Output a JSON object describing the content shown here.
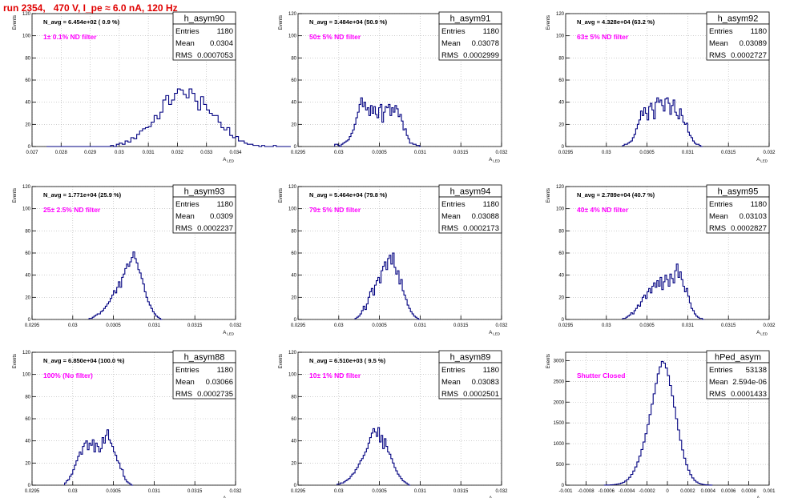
{
  "page_title": "run 2354,   470 V, I_pe ≈ 6.0 nA, 120 Hz",
  "colors": {
    "hist": "#000080",
    "magenta": "#ff00ff",
    "title_red": "#e00000",
    "grid": "#b0b0b0"
  },
  "chart_data": [
    {
      "type": "histogram",
      "name": "h_asym90",
      "stats": {
        "Entries": "1180",
        "Mean": "0.0304",
        "RMS": "0.0007053"
      },
      "navg_label": "N_avg = 6.454e+02 ( 0.9 %)",
      "filter_label": "1± 0.1% ND filter",
      "xlabel": "A_LED",
      "ylabel": "Events",
      "xlim": [
        0.027,
        0.034
      ],
      "ylim": [
        0,
        120
      ],
      "xticks": [
        "0.027",
        "0.028",
        "0.029",
        "0.03",
        "0.031",
        "0.032",
        "0.033",
        "0.034"
      ],
      "yticks": [
        "0",
        "20",
        "40",
        "60",
        "80",
        "100",
        "120"
      ],
      "grid": true,
      "bins": {
        "start": 0.0275,
        "width": 0.0001,
        "counts": [
          0,
          0,
          0,
          0,
          0,
          0,
          0,
          0,
          0,
          0,
          0,
          0,
          0,
          0,
          0,
          0,
          0,
          0,
          0,
          0,
          0,
          0,
          1,
          0,
          2,
          3,
          2,
          5,
          4,
          8,
          7,
          11,
          14,
          16,
          17,
          18,
          22,
          28,
          25,
          31,
          42,
          46,
          38,
          42,
          48,
          52,
          51,
          47,
          44,
          52,
          48,
          41,
          33,
          45,
          38,
          33,
          30,
          28,
          28,
          22,
          17,
          15,
          17,
          10,
          8,
          9,
          5,
          5,
          3,
          2,
          2,
          1,
          1,
          0,
          1,
          0,
          0,
          0,
          1,
          0,
          0,
          0,
          0,
          0
        ]
      }
    },
    {
      "type": "histogram",
      "name": "h_asym91",
      "stats": {
        "Entries": "1180",
        "Mean": "0.03078",
        "RMS": "0.0002999"
      },
      "navg_label": "N_avg = 3.484e+04 (50.9 %)",
      "filter_label": "50± 5% ND filter",
      "xlabel": "A_LED",
      "ylabel": "Events",
      "xlim": [
        0.0295,
        0.032
      ],
      "ylim": [
        0,
        120
      ],
      "xticks": [
        "0.0295",
        "0.03",
        "0.0305",
        "0.031",
        "0.0315",
        "0.032"
      ],
      "yticks": [
        "0",
        "20",
        "40",
        "60",
        "80",
        "100",
        "120"
      ],
      "grid": true,
      "bins": {
        "start": 0.02995,
        "width": 2e-05,
        "counts": [
          2,
          2,
          1,
          0,
          2,
          3,
          4,
          5,
          6,
          9,
          12,
          15,
          20,
          26,
          31,
          38,
          44,
          36,
          40,
          33,
          35,
          28,
          37,
          30,
          36,
          29,
          26,
          35,
          38,
          22,
          31,
          36,
          35,
          38,
          28,
          35,
          31,
          37,
          34,
          27,
          29,
          23,
          15,
          16,
          10,
          7,
          3,
          3,
          2,
          2,
          1,
          1,
          0
        ]
      }
    },
    {
      "type": "histogram",
      "name": "h_asym92",
      "stats": {
        "Entries": "1180",
        "Mean": "0.03089",
        "RMS": "0.0002727"
      },
      "navg_label": "N_avg = 4.328e+04 (63.2 %)",
      "filter_label": "63± 5% ND filter",
      "xlabel": "A_LED",
      "ylabel": "Events",
      "xlim": [
        0.0295,
        0.032
      ],
      "ylim": [
        0,
        120
      ],
      "xticks": [
        "0.0295",
        "0.03",
        "0.0305",
        "0.031",
        "0.0315",
        "0.032"
      ],
      "yticks": [
        "0",
        "20",
        "40",
        "60",
        "80",
        "100",
        "120"
      ],
      "grid": true,
      "bins": {
        "start": 0.0302,
        "width": 2e-05,
        "counts": [
          1,
          2,
          2,
          3,
          4,
          5,
          8,
          11,
          16,
          20,
          24,
          32,
          28,
          35,
          30,
          24,
          36,
          39,
          33,
          25,
          40,
          44,
          40,
          42,
          37,
          32,
          43,
          44,
          39,
          29,
          37,
          42,
          31,
          28,
          25,
          34,
          28,
          22,
          20,
          21,
          13,
          10,
          8,
          5,
          3,
          2,
          2,
          1,
          0
        ]
      }
    },
    {
      "type": "histogram",
      "name": "h_asym93",
      "stats": {
        "Entries": "1180",
        "Mean": "0.0309",
        "RMS": "0.0002237"
      },
      "navg_label": "N_avg = 1.771e+04 (25.9 %)",
      "filter_label": "25± 2.5% ND filter",
      "xlabel": "A_LED",
      "ylabel": "Events",
      "xlim": [
        0.0295,
        0.032
      ],
      "ylim": [
        0,
        120
      ],
      "xticks": [
        "0.0295",
        "0.03",
        "0.0305",
        "0.031",
        "0.0315",
        "0.032"
      ],
      "yticks": [
        "0",
        "20",
        "40",
        "60",
        "80",
        "100",
        "120"
      ],
      "grid": true,
      "bins": {
        "start": 0.0302,
        "width": 2e-05,
        "counts": [
          1,
          1,
          2,
          3,
          4,
          5,
          5,
          7,
          8,
          10,
          12,
          14,
          16,
          19,
          22,
          26,
          24,
          29,
          34,
          29,
          38,
          41,
          46,
          50,
          48,
          52,
          56,
          61,
          55,
          51,
          45,
          42,
          37,
          32,
          25,
          20,
          16,
          13,
          10,
          7,
          5,
          3,
          2,
          1,
          0
        ]
      }
    },
    {
      "type": "histogram",
      "name": "h_asym94",
      "stats": {
        "Entries": "1180",
        "Mean": "0.03088",
        "RMS": "0.0002173"
      },
      "navg_label": "N_avg = 5.464e+04 (79.8 %)",
      "filter_label": "79± 5% ND filter",
      "xlabel": "A_LED",
      "ylabel": "Events",
      "xlim": [
        0.0295,
        0.032
      ],
      "ylim": [
        0,
        120
      ],
      "xticks": [
        "0.0295",
        "0.03",
        "0.0305",
        "0.031",
        "0.0315",
        "0.032"
      ],
      "yticks": [
        "0",
        "20",
        "40",
        "60",
        "80",
        "100",
        "120"
      ],
      "grid": true,
      "bins": {
        "start": 0.0302,
        "width": 2e-05,
        "counts": [
          1,
          2,
          3,
          5,
          8,
          12,
          9,
          14,
          20,
          25,
          28,
          22,
          31,
          35,
          38,
          33,
          44,
          48,
          52,
          45,
          55,
          58,
          50,
          60,
          47,
          41,
          44,
          32,
          36,
          26,
          22,
          18,
          13,
          10,
          7,
          5,
          3,
          2,
          1,
          0
        ]
      }
    },
    {
      "type": "histogram",
      "name": "h_asym95",
      "stats": {
        "Entries": "1180",
        "Mean": "0.03103",
        "RMS": "0.0002827"
      },
      "navg_label": "N_avg = 2.789e+04 (40.7 %)",
      "filter_label": "40± 4% ND filter",
      "xlabel": "A_LED",
      "ylabel": "Events",
      "xlim": [
        0.0295,
        0.032
      ],
      "ylim": [
        0,
        120
      ],
      "xticks": [
        "0.0295",
        "0.03",
        "0.0305",
        "0.031",
        "0.0315",
        "0.032"
      ],
      "yticks": [
        "0",
        "20",
        "40",
        "60",
        "80",
        "100",
        "120"
      ],
      "grid": true,
      "bins": {
        "start": 0.0302,
        "width": 2e-05,
        "counts": [
          1,
          1,
          2,
          3,
          4,
          6,
          5,
          8,
          10,
          13,
          12,
          16,
          20,
          22,
          19,
          25,
          28,
          24,
          30,
          33,
          29,
          35,
          30,
          38,
          27,
          34,
          40,
          36,
          30,
          41,
          37,
          33,
          44,
          50,
          38,
          43,
          36,
          30,
          25,
          28,
          21,
          15,
          10,
          8,
          5,
          3,
          2,
          1,
          1,
          0
        ]
      }
    },
    {
      "type": "histogram",
      "name": "h_asym88",
      "stats": {
        "Entries": "1180",
        "Mean": "0.03066",
        "RMS": "0.0002735"
      },
      "navg_label": "N_avg = 6.850e+04 (100.0 %)",
      "filter_label": "100% (No filter)",
      "xlabel": "A_LED",
      "ylabel": "Events",
      "xlim": [
        0.0295,
        0.032
      ],
      "ylim": [
        0,
        120
      ],
      "xticks": [
        "0.0295",
        "0.03",
        "0.0305",
        "0.031",
        "0.0315",
        "0.032"
      ],
      "yticks": [
        "0",
        "20",
        "40",
        "60",
        "80",
        "100",
        "120"
      ],
      "grid": true,
      "bins": {
        "start": 0.0299,
        "width": 2e-05,
        "counts": [
          2,
          4,
          5,
          8,
          10,
          14,
          18,
          22,
          26,
          30,
          28,
          35,
          38,
          40,
          32,
          38,
          36,
          41,
          30,
          38,
          35,
          30,
          33,
          43,
          38,
          45,
          50,
          41,
          38,
          35,
          30,
          27,
          22,
          20,
          15,
          14,
          8,
          5,
          3,
          2,
          1,
          0
        ]
      }
    },
    {
      "type": "histogram",
      "name": "h_asym89",
      "stats": {
        "Entries": "1180",
        "Mean": "0.03083",
        "RMS": "0.0002501"
      },
      "navg_label": "N_avg = 6.510e+03 ( 9.5 %)",
      "filter_label": "10± 1% ND filter",
      "xlabel": "A_LED",
      "ylabel": "Events",
      "xlim": [
        0.0295,
        0.032
      ],
      "ylim": [
        0,
        120
      ],
      "xticks": [
        "0.0295",
        "0.03",
        "0.0305",
        "0.031",
        "0.0315",
        "0.032"
      ],
      "yticks": [
        "0",
        "20",
        "40",
        "60",
        "80",
        "100",
        "120"
      ],
      "grid": true,
      "bins": {
        "start": 0.02998,
        "width": 2e-05,
        "counts": [
          1,
          1,
          2,
          2,
          3,
          4,
          5,
          6,
          8,
          10,
          11,
          14,
          16,
          19,
          22,
          24,
          27,
          30,
          33,
          38,
          43,
          47,
          51,
          48,
          44,
          52,
          39,
          45,
          33,
          42,
          35,
          30,
          28,
          24,
          20,
          16,
          13,
          10,
          8,
          6,
          4,
          3,
          2,
          1,
          0
        ]
      }
    },
    {
      "type": "histogram",
      "name": "hPed_asym",
      "stats": {
        "Entries": "53138",
        "Mean": "2.594e-06",
        "RMS": "0.0001433"
      },
      "filter_label": "Shutter Closed",
      "xlabel": "A_LED",
      "ylabel": "Events",
      "xlim": [
        -0.001,
        0.001
      ],
      "ylim": [
        0,
        3200
      ],
      "xticks": [
        "-0.001",
        "-0.0008",
        "-0.0006",
        "-0.0004",
        "-0.0002",
        "0",
        "0.0002",
        "0.0004",
        "0.0006",
        "0.0008",
        "0.001"
      ],
      "yticks": [
        "0",
        "500",
        "1000",
        "1500",
        "2000",
        "2500",
        "3000"
      ],
      "grid": true,
      "bins": {
        "start": -0.00062,
        "width": 2e-05,
        "counts": [
          2,
          3,
          5,
          8,
          12,
          18,
          25,
          35,
          50,
          70,
          100,
          140,
          190,
          260,
          340,
          440,
          560,
          700,
          860,
          1040,
          1240,
          1460,
          1700,
          1950,
          2200,
          2450,
          2680,
          2850,
          2980,
          2940,
          2820,
          2640,
          2400,
          2150,
          1880,
          1600,
          1330,
          1080,
          850,
          650,
          490,
          360,
          255,
          175,
          115,
          75,
          48,
          30,
          18,
          10,
          6,
          3,
          2
        ]
      }
    }
  ]
}
